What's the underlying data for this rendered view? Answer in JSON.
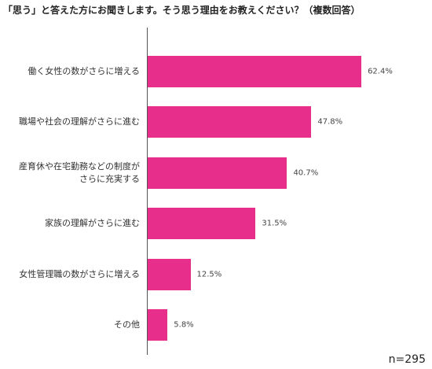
{
  "chart_data": {
    "type": "bar",
    "orientation": "horizontal",
    "title": "「思う」と答えた方にお聞きします。そう思う理由をお教えください？（複数回答）",
    "categories": [
      "働く女性の数がさらに増える",
      "職場や社会の理解がさらに進む",
      "産育休や在宅勤務などの制度が\nさらに充実する",
      "家族の理解がさらに進む",
      "女性管理職の数がさらに増える",
      "その他"
    ],
    "values": [
      62.4,
      47.8,
      40.7,
      31.5,
      12.5,
      5.8
    ],
    "value_labels": [
      "62.4%",
      "47.8%",
      "40.7%",
      "31.5%",
      "12.5%",
      "5.8%"
    ],
    "color": "#e62e8a",
    "note": "n=295"
  }
}
